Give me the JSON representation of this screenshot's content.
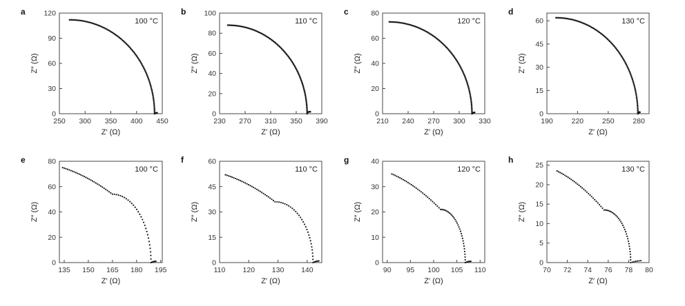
{
  "chart_data": [
    {
      "panel": "a",
      "type": "scatter",
      "annotation": "100 °C",
      "xlabel": "Z′ (Ω)",
      "ylabel": "Z″ (Ω)",
      "xlim": [
        250,
        450
      ],
      "ylim": [
        0,
        120
      ],
      "xticks": [
        250,
        300,
        350,
        400,
        450
      ],
      "yticks": [
        0,
        30,
        60,
        90,
        120
      ],
      "arc_start": [
        270,
        112
      ],
      "arc_end": [
        435,
        0
      ],
      "kink": [
        0,
        0
      ],
      "knee": 0,
      "tail": [
        440,
        1
      ],
      "grid": false
    },
    {
      "panel": "b",
      "type": "scatter",
      "annotation": "110 °C",
      "xlabel": "Z′ (Ω)",
      "ylabel": "Z″ (Ω)",
      "xlim": [
        230,
        390
      ],
      "ylim": [
        0,
        100
      ],
      "xticks": [
        230,
        270,
        310,
        350,
        390
      ],
      "yticks": [
        0,
        20,
        40,
        60,
        80,
        100
      ],
      "arc_start": [
        243,
        88
      ],
      "arc_end": [
        367,
        1
      ],
      "kink": [
        0,
        0
      ],
      "knee": 0,
      "tail": [
        372,
        2
      ],
      "grid": false
    },
    {
      "panel": "c",
      "type": "scatter",
      "annotation": "120 °C",
      "xlabel": "Z′ (Ω)",
      "ylabel": "Z″ (Ω)",
      "xlim": [
        210,
        330
      ],
      "ylim": [
        0,
        80
      ],
      "xticks": [
        210,
        240,
        270,
        300,
        330
      ],
      "yticks": [
        0,
        20,
        40,
        60,
        80
      ],
      "arc_start": [
        218,
        73
      ],
      "arc_end": [
        315,
        0
      ],
      "kink": [
        0,
        0
      ],
      "knee": 0,
      "tail": [
        318,
        1
      ],
      "grid": false
    },
    {
      "panel": "d",
      "type": "scatter",
      "annotation": "130 °C",
      "xlabel": "Z′ (Ω)",
      "ylabel": "Z″ (Ω)",
      "xlim": [
        190,
        290
      ],
      "ylim": [
        0,
        65
      ],
      "xticks": [
        190,
        220,
        250,
        280
      ],
      "yticks": [
        0,
        15,
        30,
        45,
        60
      ],
      "arc_start": [
        199,
        62
      ],
      "arc_end": [
        279,
        0
      ],
      "kink": [
        0,
        0
      ],
      "knee": 0,
      "tail": [
        281,
        1
      ],
      "grid": false
    },
    {
      "panel": "e",
      "type": "scatter",
      "annotation": "100 °C",
      "xlabel": "Z′ (Ω)",
      "ylabel": "Z″ (Ω)",
      "xlim": [
        132,
        196
      ],
      "ylim": [
        0,
        80
      ],
      "xticks": [
        135,
        150,
        165,
        180,
        195
      ],
      "yticks": [
        0,
        20,
        40,
        60,
        80
      ],
      "arc_start": [
        134,
        75
      ],
      "arc_end": [
        189,
        0
      ],
      "kink": [
        165,
        54
      ],
      "knee": 0.1,
      "tail": [
        192,
        1
      ],
      "grid": false
    },
    {
      "panel": "f",
      "type": "scatter",
      "annotation": "110 °C",
      "xlabel": "Z′ (Ω)",
      "ylabel": "Z″ (Ω)",
      "xlim": [
        110,
        145
      ],
      "ylim": [
        0,
        60
      ],
      "xticks": [
        110,
        120,
        130,
        140
      ],
      "yticks": [
        0,
        15,
        30,
        45,
        60
      ],
      "arc_start": [
        112,
        52
      ],
      "arc_end": [
        142,
        0
      ],
      "kink": [
        129,
        36
      ],
      "knee": 0.1,
      "tail": [
        144,
        1
      ],
      "grid": false
    },
    {
      "panel": "g",
      "type": "scatter",
      "annotation": "120 °C",
      "xlabel": "Z′ (Ω)",
      "ylabel": "Z″ (Ω)",
      "xlim": [
        89,
        111
      ],
      "ylim": [
        0,
        40
      ],
      "xticks": [
        90,
        95,
        100,
        105,
        110
      ],
      "yticks": [
        0,
        10,
        20,
        30,
        40
      ],
      "arc_start": [
        91,
        35
      ],
      "arc_end": [
        106.8,
        0
      ],
      "kink": [
        101.5,
        21
      ],
      "knee": 0.12,
      "tail": [
        108,
        0.5
      ],
      "grid": false
    },
    {
      "panel": "h",
      "type": "scatter",
      "annotation": "130 °C",
      "xlabel": "Z′ (Ω)",
      "ylabel": "Z″ (Ω)",
      "xlim": [
        70,
        80
      ],
      "ylim": [
        0,
        26
      ],
      "xticks": [
        70,
        72,
        74,
        76,
        78,
        80
      ],
      "yticks": [
        0,
        5,
        10,
        15,
        20,
        25
      ],
      "arc_start": [
        71,
        23.5
      ],
      "arc_end": [
        78.2,
        0
      ],
      "kink": [
        75.6,
        13.5
      ],
      "knee": 0.12,
      "tail": [
        79.2,
        0.5
      ],
      "grid": false
    }
  ]
}
